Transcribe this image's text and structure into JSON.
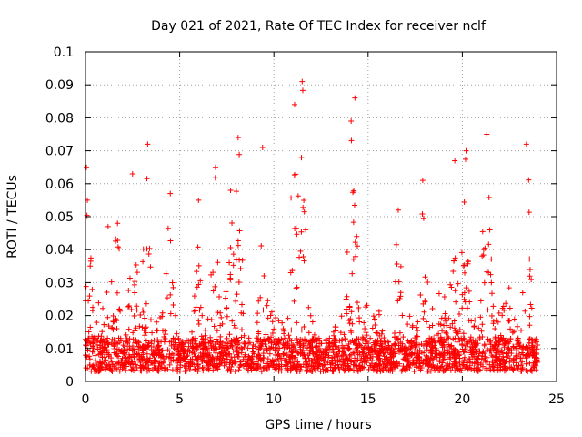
{
  "chart_data": {
    "type": "scatter",
    "title": "Day 021 of 2021, Rate Of TEC Index for receiver nclf",
    "xlabel": "GPS time / hours",
    "ylabel": "ROTI / TECUs",
    "xlim": [
      0,
      25
    ],
    "ylim": [
      0,
      0.1
    ],
    "x_ticks": [
      0,
      5,
      10,
      15,
      20,
      25
    ],
    "x_tick_labels": [
      "0",
      "5",
      "10",
      "15",
      "20",
      "25"
    ],
    "y_ticks": [
      0,
      0.01,
      0.02,
      0.03,
      0.04,
      0.05,
      0.06,
      0.07,
      0.08,
      0.09,
      0.1
    ],
    "y_tick_labels": [
      "0",
      "0.01",
      "0.02",
      "0.03",
      "0.04",
      "0.05",
      "0.06",
      "0.07",
      "0.08",
      "0.09",
      "0.1"
    ],
    "grid": true,
    "marker": "+",
    "color": "#ff0000",
    "x_range_of_data": [
      0,
      24
    ],
    "envelope_peaks": [
      {
        "x": 0.05,
        "y": 0.065
      },
      {
        "x": 0.1,
        "y": 0.055
      },
      {
        "x": 0.25,
        "y": 0.035
      },
      {
        "x": 1.2,
        "y": 0.047
      },
      {
        "x": 1.7,
        "y": 0.048
      },
      {
        "x": 2.5,
        "y": 0.063
      },
      {
        "x": 3.3,
        "y": 0.072
      },
      {
        "x": 4.5,
        "y": 0.057
      },
      {
        "x": 6.0,
        "y": 0.055
      },
      {
        "x": 6.9,
        "y": 0.065
      },
      {
        "x": 7.7,
        "y": 0.058
      },
      {
        "x": 8.1,
        "y": 0.074
      },
      {
        "x": 9.4,
        "y": 0.071
      },
      {
        "x": 11.1,
        "y": 0.084
      },
      {
        "x": 11.5,
        "y": 0.091
      },
      {
        "x": 14.1,
        "y": 0.079
      },
      {
        "x": 14.3,
        "y": 0.086
      },
      {
        "x": 16.6,
        "y": 0.052
      },
      {
        "x": 17.9,
        "y": 0.061
      },
      {
        "x": 19.6,
        "y": 0.067
      },
      {
        "x": 20.2,
        "y": 0.07
      },
      {
        "x": 21.3,
        "y": 0.075
      },
      {
        "x": 23.4,
        "y": 0.072
      }
    ],
    "typical_band": [
      0.003,
      0.02
    ]
  }
}
